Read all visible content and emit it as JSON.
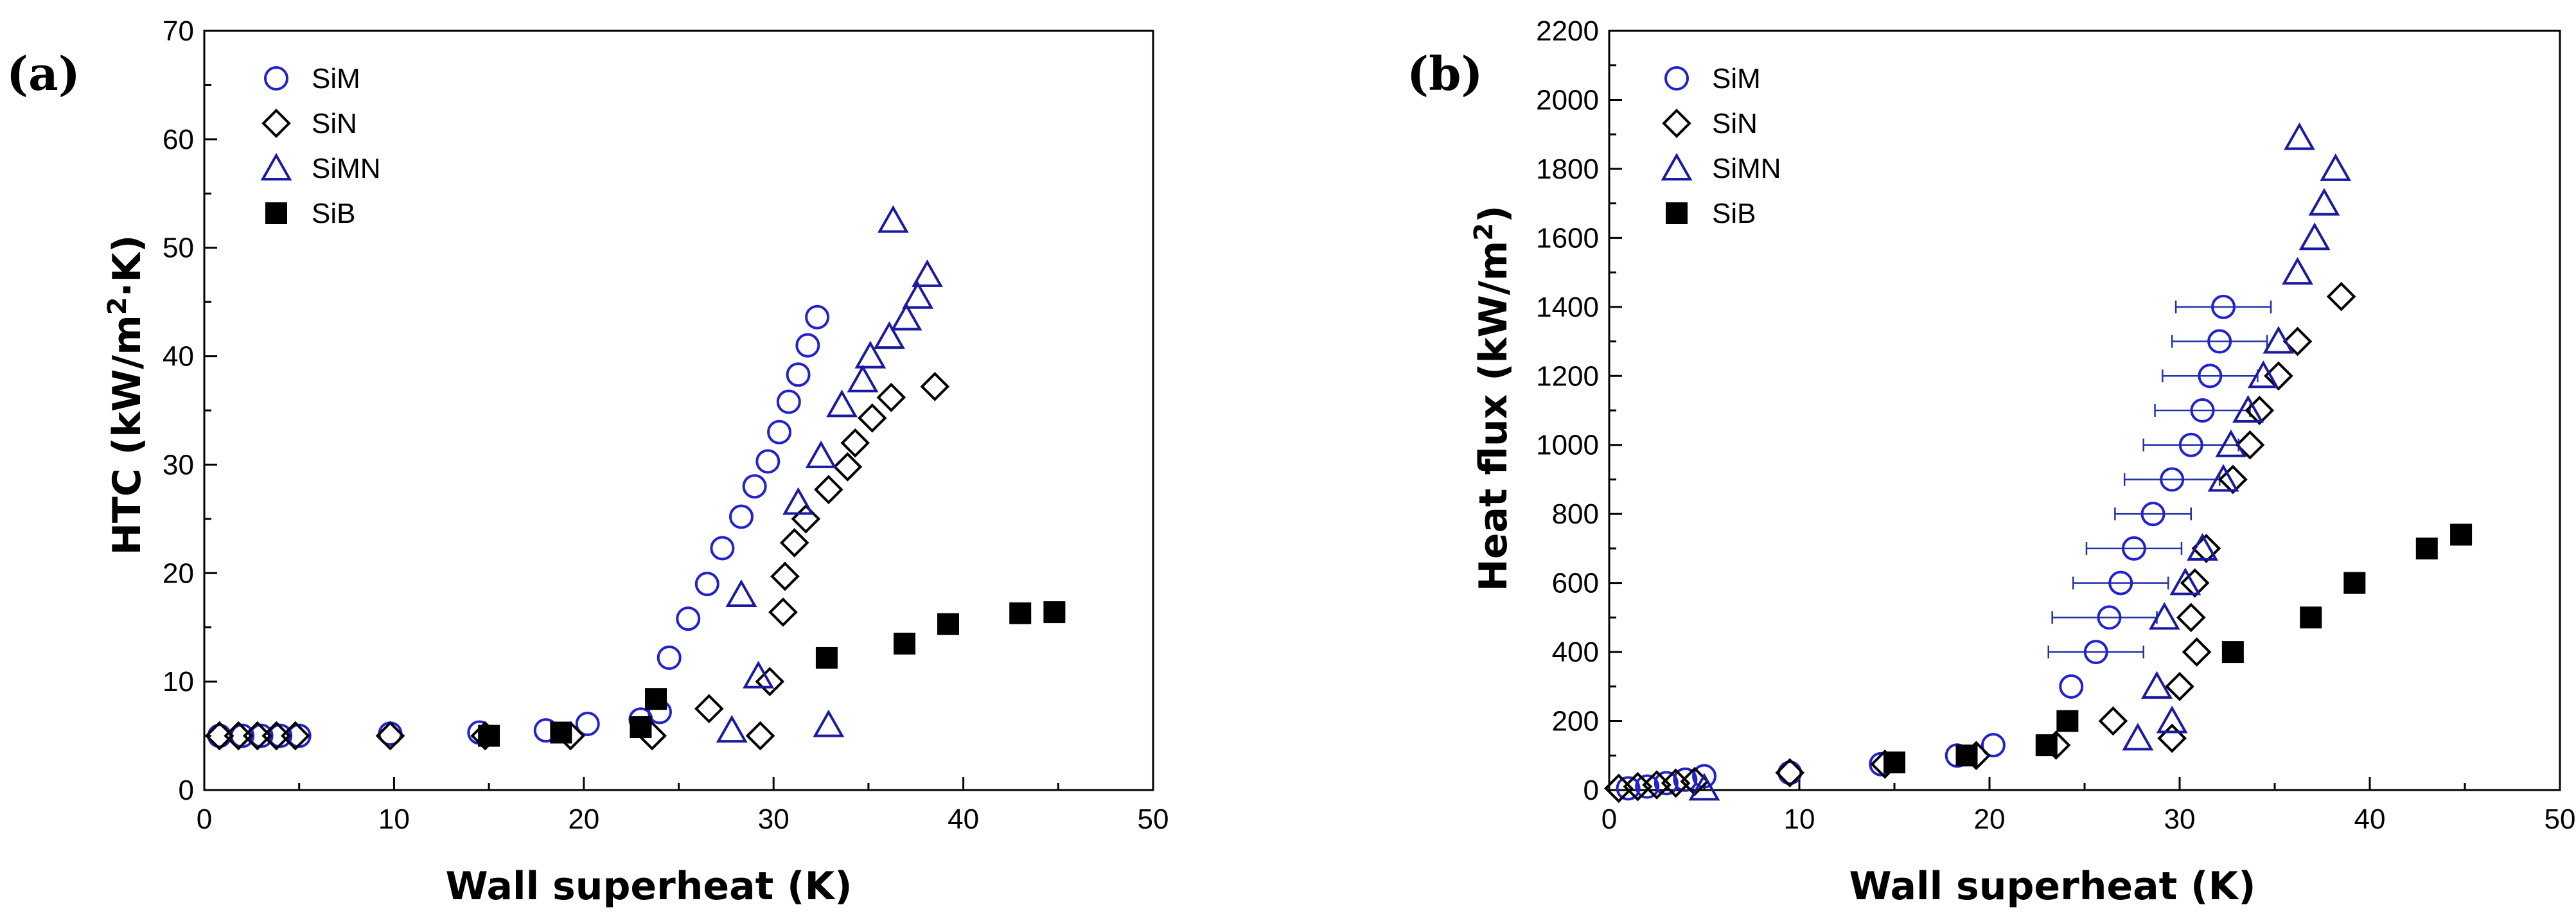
{
  "colors": {
    "SiM": "#2222cc",
    "SiN": "#000000",
    "SiMN": "#1a1aa0",
    "SiB": "#000000",
    "errSiM": "#2233aa"
  },
  "icons": {
    "SiM": "open-circle",
    "SiN": "open-diamond",
    "SiMN": "open-triangle",
    "SiB": "filled-square"
  },
  "chart_data": [
    {
      "panel": "(a)",
      "type": "scatter",
      "xlabel": "Wall superheat (K)",
      "ylabel_main": "HTC (kW/m",
      "ylabel_sup": "2",
      "ylabel_tail": "·K)",
      "xlim": [
        0,
        50
      ],
      "ylim": [
        0,
        70
      ],
      "xticks": [
        0,
        10,
        20,
        30,
        40,
        50
      ],
      "yticks": [
        0,
        10,
        20,
        30,
        40,
        50,
        60,
        70
      ],
      "legend_position": "top-left",
      "series": [
        {
          "name": "SiM",
          "x": [
            0.8,
            2,
            3,
            4,
            5,
            9.8,
            14.5,
            18,
            20.2,
            23,
            24,
            24.5,
            25.5,
            26.5,
            27.3,
            28.3,
            29,
            29.7,
            30.3,
            30.8,
            31.3,
            31.8,
            32.3
          ],
          "y": [
            5,
            5,
            5,
            5,
            5,
            5.2,
            5.3,
            5.5,
            6.1,
            6.5,
            7.2,
            12.2,
            15.8,
            19,
            22.3,
            25.2,
            28,
            30.3,
            33,
            35.8,
            38.3,
            41,
            43.6
          ]
        },
        {
          "name": "SiN",
          "x": [
            0.8,
            1.8,
            2.8,
            3.8,
            4.8,
            9.8,
            14.8,
            19.3,
            23.6,
            26.6,
            29.3,
            29.8,
            30.5,
            30.6,
            31.1,
            31.7,
            32.9,
            33.9,
            34.3,
            35.2,
            36.2,
            38.5
          ],
          "y": [
            5,
            5,
            5,
            5,
            5,
            5,
            5,
            5,
            5,
            7.5,
            5,
            10,
            16.4,
            19.7,
            22.8,
            25,
            27.7,
            29.8,
            32,
            34.3,
            36.2,
            37.2
          ]
        },
        {
          "name": "SiMN",
          "x": [
            27.8,
            28.3,
            29.2,
            31.3,
            32.5,
            32.9,
            33.6,
            34.7,
            35.1,
            36.1,
            37.0,
            37.6,
            38.1,
            36.3
          ],
          "y": [
            5.5,
            18,
            10.5,
            26.5,
            30.8,
            6,
            35.5,
            37.8,
            40,
            41.8,
            43.5,
            45.5,
            47.5,
            52.5
          ]
        },
        {
          "name": "SiB",
          "x": [
            15,
            18.8,
            23,
            23.8,
            32.8,
            36.9,
            39.2,
            43,
            44.8
          ],
          "y": [
            5,
            5.3,
            5.8,
            8.4,
            12.2,
            13.5,
            15.3,
            16.3,
            16.4
          ]
        }
      ]
    },
    {
      "panel": "(b)",
      "type": "scatter",
      "xlabel": "Wall superheat (K)",
      "ylabel_main": "Heat flux (kW/m",
      "ylabel_sup": "2",
      "ylabel_tail": ")",
      "xlim": [
        0,
        50
      ],
      "ylim": [
        0,
        2200
      ],
      "xticks": [
        0,
        10,
        20,
        30,
        40,
        50
      ],
      "yticks": [
        0,
        200,
        400,
        600,
        800,
        1000,
        1200,
        1400,
        1600,
        1800,
        2000,
        2200
      ],
      "legend_position": "top-left",
      "series": [
        {
          "name": "SiM",
          "x": [
            1,
            2,
            3,
            4,
            5,
            9.5,
            14.3,
            18.3,
            20.2,
            24.3,
            25.6,
            26.3,
            26.9,
            27.6,
            28.6,
            29.6,
            30.6,
            31.2,
            31.6,
            32.1,
            32.3
          ],
          "y": [
            5,
            10,
            20,
            30,
            40,
            50,
            75,
            100,
            130,
            300,
            400,
            500,
            600,
            700,
            800,
            900,
            1000,
            1100,
            1200,
            1300,
            1400
          ],
          "xerr_lo": [
            0,
            0,
            0,
            0,
            0,
            0,
            0,
            0,
            0,
            0,
            2.5,
            3,
            2.5,
            2.5,
            2,
            2.5,
            2.5,
            2.5,
            2.5,
            2.5,
            2.5
          ],
          "xerr_hi": [
            0,
            0,
            0,
            0,
            0,
            0,
            0,
            0,
            0,
            0,
            2.5,
            2.5,
            2.5,
            2.5,
            2,
            2.5,
            2.5,
            2.5,
            2.5,
            2.5,
            2.5
          ]
        },
        {
          "name": "SiN",
          "x": [
            0.5,
            1.5,
            2.5,
            3.5,
            4.5,
            9.5,
            14.5,
            19.3,
            23.5,
            26.5,
            29.6,
            30,
            30.6,
            30.8,
            30.9,
            31.4,
            32.8,
            33.7,
            34.2,
            35.2,
            36.2,
            38.5
          ],
          "y": [
            5,
            10,
            15,
            20,
            25,
            50,
            75,
            100,
            130,
            200,
            150,
            300,
            500,
            600,
            400,
            700,
            900,
            1000,
            1100,
            1200,
            1300,
            1430
          ]
        },
        {
          "name": "SiMN",
          "x": [
            5,
            27.8,
            28.8,
            29.2,
            29.6,
            30.3,
            31.2,
            32.3,
            32.7,
            33.6,
            34.4,
            35.2,
            36.2,
            37.1,
            37.6,
            38.2,
            36.3
          ],
          "y": [
            5,
            150,
            300,
            500,
            200,
            600,
            700,
            900,
            1000,
            1100,
            1200,
            1300,
            1500,
            1600,
            1700,
            1800,
            1890
          ]
        },
        {
          "name": "SiB",
          "x": [
            15,
            18.8,
            23,
            24.1,
            32.8,
            36.9,
            39.2,
            43,
            44.8
          ],
          "y": [
            80,
            100,
            130,
            200,
            400,
            500,
            600,
            700,
            740
          ]
        }
      ]
    }
  ]
}
